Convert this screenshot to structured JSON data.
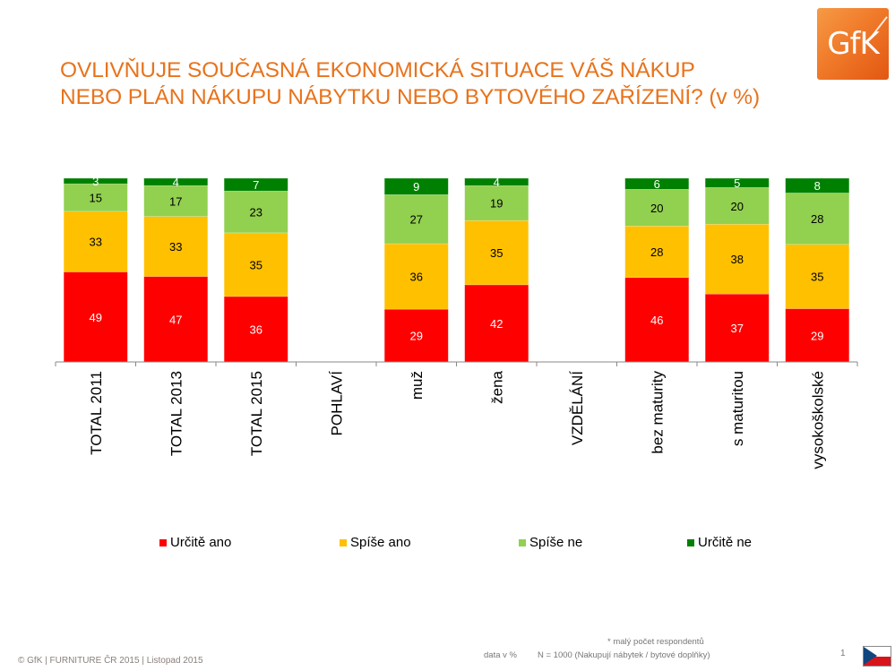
{
  "header": {
    "title_line1": "OVLIVŇUJE SOUČASNÁ EKONOMICKÁ SITUACE VÁŠ NÁKUP",
    "title_line2": "NEBO PLÁN NÁKUPU NÁBYTKU NEBO BYTOVÉHO ZAŘÍZENÍ?  (v %)",
    "logo_text": "GfK"
  },
  "colors": {
    "title": "#e8731c",
    "urcite_ano": "#ff0000",
    "spise_ano": "#ffc000",
    "spise_ne": "#92d050",
    "urcite_ne": "#008000"
  },
  "chart_data": {
    "type": "bar",
    "stacked": true,
    "percent_stacked": true,
    "title": "OVLIVŇUJE SOUČASNÁ EKONOMICKÁ SITUACE VÁŠ NÁKUP NEBO PLÁN NÁKUPU NÁBYTKU NEBO BYTOVÉHO ZAŘÍZENÍ?  (v %)",
    "xlabel": "",
    "ylabel": "",
    "ylim": [
      0,
      100
    ],
    "grid": false,
    "legend_position": "bottom",
    "categories": [
      "TOTAL 2011",
      "TOTAL 2013",
      "TOTAL 2015",
      "POHLAVÍ",
      "muž",
      "žena",
      "VZDĚLÁNÍ",
      "bez maturity",
      "s maturitou",
      "vysokoškolské"
    ],
    "series": [
      {
        "name": "Určitě ano",
        "color": "#ff0000",
        "label_color": "#ffffff",
        "values": [
          49,
          47,
          36,
          null,
          29,
          42,
          null,
          46,
          37,
          29
        ]
      },
      {
        "name": "Spíše ano",
        "color": "#ffc000",
        "label_color": "#000000",
        "values": [
          33,
          33,
          35,
          null,
          36,
          35,
          null,
          28,
          38,
          35
        ]
      },
      {
        "name": "Spíše ne",
        "color": "#92d050",
        "label_color": "#000000",
        "values": [
          15,
          17,
          23,
          null,
          27,
          19,
          null,
          20,
          20,
          28
        ]
      },
      {
        "name": "Určitě ne",
        "color": "#008000",
        "label_color": "#ffffff",
        "values": [
          3,
          4,
          7,
          null,
          9,
          4,
          null,
          6,
          5,
          8
        ]
      }
    ]
  },
  "legend": [
    {
      "label": "Určitě ano",
      "color": "#ff0000"
    },
    {
      "label": "Spíše ano",
      "color": "#ffc000"
    },
    {
      "label": "Spíše ne",
      "color": "#92d050"
    },
    {
      "label": "Určitě ne",
      "color": "#008000"
    }
  ],
  "footer": {
    "copyright": "© GfK | FURNITURE ČR 2015 | Listopad 2015",
    "note": "* malý počet respondentů",
    "data_unit": "data v %",
    "sample": "N = 1000 (Nakupují nábytek / bytové doplňky)",
    "page_number": "1",
    "flag": "czech-flag"
  }
}
